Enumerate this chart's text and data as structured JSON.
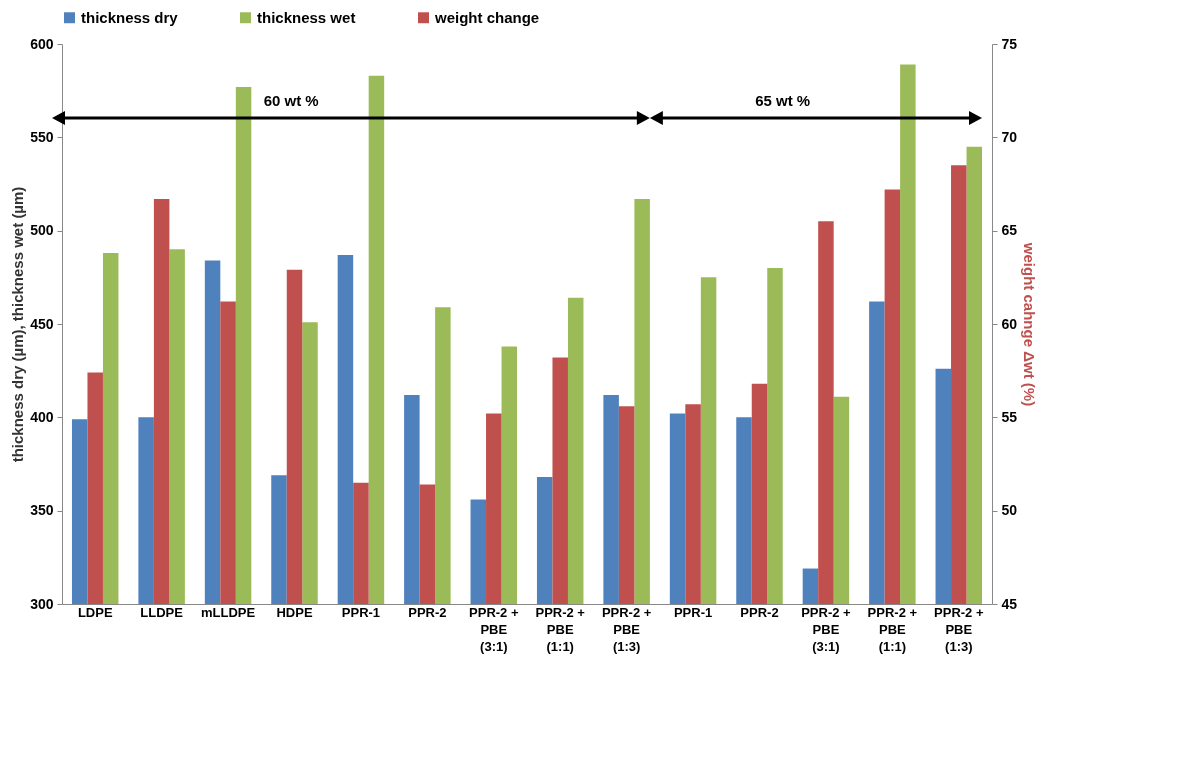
{
  "chart_data": {
    "type": "bar",
    "categories": [
      "LDPE",
      "LLDPE",
      "mLLDPE",
      "HDPE",
      "PPR-1",
      "PPR-2",
      "PPR-2 +\nPBE\n(3:1)",
      "PPR-2 +\nPBE\n(1:1)",
      "PPR-2 +\nPBE\n(1:3)",
      "PPR-1",
      "PPR-2",
      "PPR-2 +\nPBE\n(3:1)",
      "PPR-2 +\nPBE\n(1:1)",
      "PPR-2 +\nPBE\n(1:3)"
    ],
    "series": [
      {
        "name": "thickness dry",
        "color": "#4f81bd",
        "values": [
          399,
          400,
          484,
          369,
          487,
          412,
          356,
          368,
          412,
          402,
          400,
          319,
          462,
          426
        ]
      },
      {
        "name": "weight change",
        "color": "#c0504d",
        "axis": "y2",
        "values": [
          57.4,
          66.7,
          61.2,
          62.9,
          51.5,
          51.4,
          55.2,
          58.2,
          55.6,
          55.7,
          56.8,
          65.5,
          67.2,
          68.5
        ]
      },
      {
        "name": "thickness wet",
        "color": "#9bbb59",
        "values": [
          488,
          490,
          577,
          451,
          583,
          459,
          438,
          464,
          517,
          475,
          480,
          411,
          589,
          545
        ]
      }
    ],
    "ylabel": "thickness dry (µm), thickness wet (µm)",
    "y2label": "weight cahnge Δwt (%)",
    "ylim": [
      300,
      600
    ],
    "yticks": [
      300,
      350,
      400,
      450,
      500,
      550,
      600
    ],
    "y2lim": [
      45,
      75
    ],
    "y2ticks": [
      45,
      50,
      55,
      60,
      65,
      70,
      75
    ],
    "annotations": [
      "60 wt %",
      "65 wt %"
    ],
    "legend": "top",
    "grid": false
  }
}
